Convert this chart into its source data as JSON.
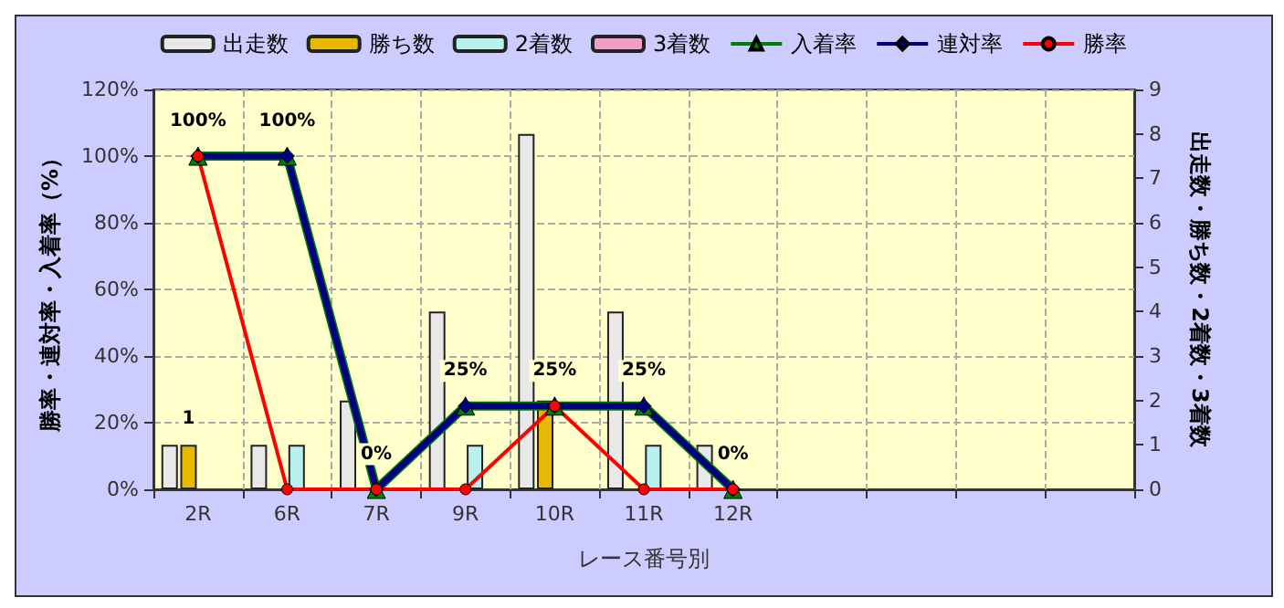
{
  "chart_data": {
    "type": "bar",
    "xlabel": "レース番号別",
    "ylabel": "勝率・連対率・入着率（%）",
    "y2label": "出走数・勝ち数・2着数・3着数",
    "categories": [
      "2R",
      "6R",
      "7R",
      "9R",
      "10R",
      "11R",
      "12R",
      null,
      null,
      null,
      null
    ],
    "series": [
      {
        "name": "出走数",
        "axis": "y2",
        "color": "#e8e8e8",
        "values": [
          1,
          1,
          2,
          4,
          8,
          4,
          1,
          null,
          null,
          null,
          null
        ]
      },
      {
        "name": "勝ち数",
        "axis": "y2",
        "color": "#e6b800",
        "values": [
          1,
          0,
          0,
          0,
          2,
          0,
          0,
          null,
          null,
          null,
          null
        ],
        "value_labels": [
          "1",
          null,
          null,
          null,
          null,
          null,
          null,
          null,
          null,
          null,
          null
        ]
      },
      {
        "name": "2着数",
        "axis": "y2",
        "color": "#b8f0f0",
        "values": [
          0,
          1,
          0,
          1,
          0,
          1,
          0,
          null,
          null,
          null,
          null
        ]
      },
      {
        "name": "3着数",
        "axis": "y2",
        "color": "#f0a0c8",
        "values": [
          0,
          0,
          0,
          0,
          0,
          0,
          0,
          null,
          null,
          null,
          null
        ]
      },
      {
        "name": "入着率",
        "type": "line",
        "marker": "triangle",
        "color": "#008000",
        "values": [
          100,
          100,
          0,
          25,
          25,
          25,
          0,
          null,
          null,
          null,
          null
        ],
        "value_labels": [
          "100%",
          "100%",
          "0%",
          "25%",
          "25%",
          "25%",
          "0%",
          null,
          null,
          null,
          null
        ]
      },
      {
        "name": "連対率",
        "type": "line",
        "marker": "diamond",
        "color": "#000080",
        "values": [
          100,
          100,
          0,
          25,
          25,
          25,
          0,
          null,
          null,
          null,
          null
        ]
      },
      {
        "name": "勝率",
        "type": "line",
        "marker": "circle",
        "color": "#ff0000",
        "values": [
          100,
          0,
          0,
          0,
          25,
          0,
          0,
          null,
          null,
          null,
          null
        ]
      }
    ],
    "ylim": [
      0,
      120
    ],
    "yticks": [
      {
        "value": 0,
        "label": "0%"
      },
      {
        "value": 20,
        "label": "20%"
      },
      {
        "value": 40,
        "label": "40%"
      },
      {
        "value": 60,
        "label": "60%"
      },
      {
        "value": 80,
        "label": "80%"
      },
      {
        "value": 100,
        "label": "100%"
      },
      {
        "value": 120,
        "label": "120%"
      }
    ],
    "y2lim": [
      0,
      9
    ],
    "y2ticks": [
      0,
      1,
      2,
      3,
      4,
      5,
      6,
      7,
      8,
      9
    ],
    "grid": true,
    "legend": "top"
  }
}
